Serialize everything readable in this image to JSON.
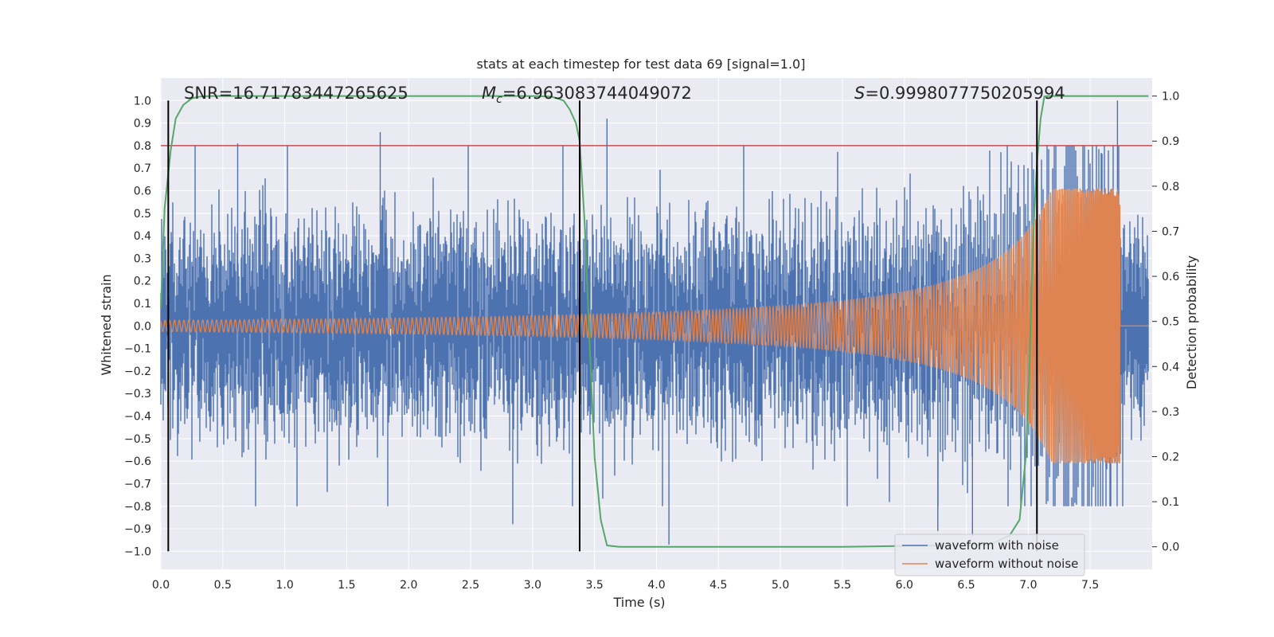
{
  "chart_data": {
    "type": "line",
    "title": "stats at each timestep for test data 69 [signal=1.0]",
    "xlabel": "Time (s)",
    "ylabel": "Whitened strain",
    "ylabel_right": "Detection probability",
    "xlim": [
      0.0,
      8.0
    ],
    "ylim": [
      -1.08,
      1.1
    ],
    "ylim_right": [
      -0.05,
      1.04
    ],
    "x_ticks": [
      "0.0",
      "0.5",
      "1.0",
      "1.5",
      "2.0",
      "2.5",
      "3.0",
      "3.5",
      "4.0",
      "4.5",
      "5.0",
      "5.5",
      "6.0",
      "6.5",
      "7.0",
      "7.5"
    ],
    "y_ticks": [
      "1.0",
      "0.9",
      "0.8",
      "0.7",
      "0.6",
      "0.5",
      "0.4",
      "0.3",
      "0.2",
      "0.1",
      "0.0",
      "−0.1",
      "−0.2",
      "−0.3",
      "−0.4",
      "−0.5",
      "−0.6",
      "−0.7",
      "−0.8",
      "−0.9",
      "−1.0"
    ],
    "y_ticks_right": [
      "1.0",
      "0.9",
      "0.8",
      "0.7",
      "0.6",
      "0.5",
      "0.4",
      "0.3",
      "0.2",
      "0.1",
      "0.0"
    ],
    "threshold": 0.8,
    "vlines": [
      0.06,
      3.38,
      7.07
    ],
    "annotations": {
      "snr": "SNR=16.71783447265625",
      "mc_symbol": "M",
      "mc_sub": "c",
      "mc_value": "=6.963083744049072",
      "s_symbol": "S",
      "s_value": "=0.9998077750205994"
    },
    "series": [
      {
        "name": "waveform with noise",
        "color": "#4c72b0",
        "noise_amplitude": 0.45,
        "peak_spikes": [
          [
            0.62,
            0.81
          ],
          [
            1.77,
            0.86
          ],
          [
            3.6,
            0.92
          ],
          [
            4.1,
            -0.97
          ],
          [
            2.84,
            -0.88
          ],
          [
            7.72,
            1.0
          ],
          [
            6.55,
            -0.93
          ],
          [
            6.27,
            -0.91
          ]
        ]
      },
      {
        "name": "waveform without noise",
        "color": "#dd8452",
        "start_amplitude": 0.025,
        "peak_time": 7.74,
        "peak_amplitude": 0.61
      },
      {
        "name": "detection probability",
        "color": "#55a868",
        "x": [
          0.0,
          0.03,
          0.08,
          0.12,
          0.18,
          0.25,
          0.32,
          0.4,
          0.5,
          0.7,
          1.0,
          2.0,
          3.0,
          3.15,
          3.25,
          3.3,
          3.35,
          3.38,
          3.42,
          3.46,
          3.5,
          3.55,
          3.6,
          3.7,
          3.8,
          5.0,
          5.5,
          6.0,
          6.5,
          6.7,
          6.85,
          6.93,
          6.98,
          7.01,
          7.03,
          7.05,
          7.07,
          7.1,
          7.13,
          7.16,
          7.2,
          7.3,
          7.5,
          7.97
        ],
        "y": [
          0.53,
          0.75,
          0.88,
          0.95,
          0.98,
          0.995,
          0.999,
          1.0,
          1.0,
          1.0,
          1.0,
          1.0,
          1.0,
          0.999,
          0.99,
          0.97,
          0.94,
          0.9,
          0.72,
          0.45,
          0.2,
          0.06,
          0.003,
          0.0,
          0.0,
          0.0,
          0.0,
          0.002,
          0.003,
          0.006,
          0.025,
          0.06,
          0.2,
          0.4,
          0.6,
          0.75,
          0.85,
          0.95,
          0.999,
          1.0,
          1.0,
          1.0,
          1.0,
          1.0
        ]
      }
    ],
    "legend_position": "lower right",
    "colors": {
      "threshold": "#c44e52",
      "vline": "#000000",
      "plot_bg": "#eaeaf2",
      "grid": "#ffffff"
    }
  }
}
